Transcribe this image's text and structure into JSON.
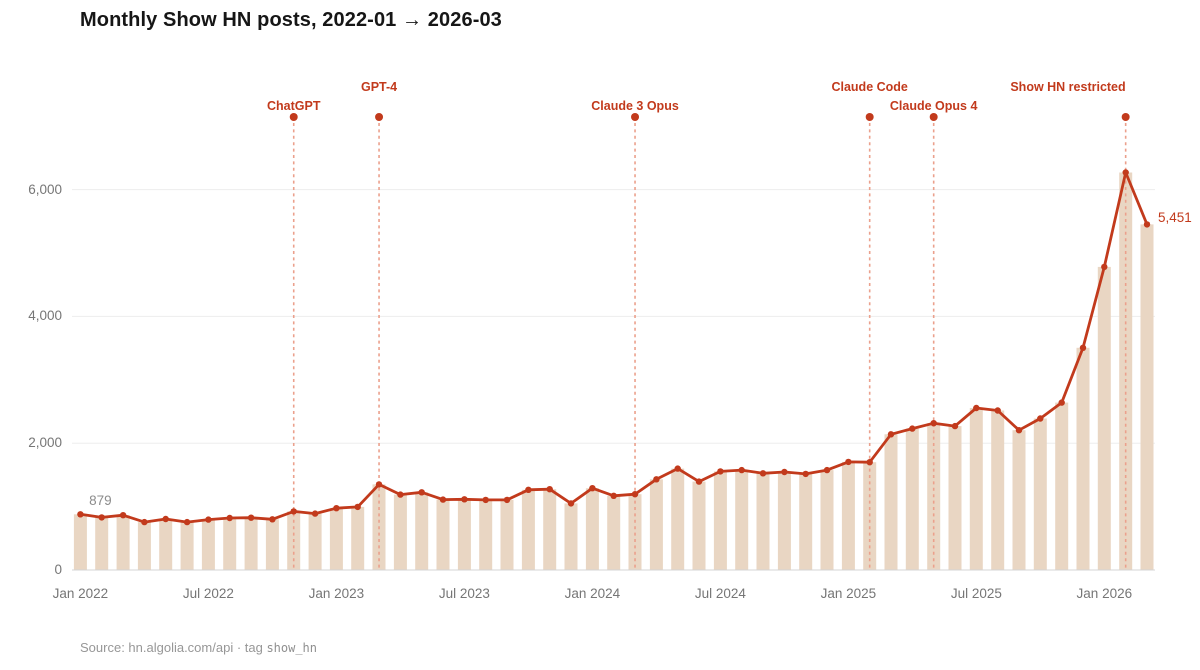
{
  "chart_data": {
    "type": "bar+line",
    "title": "Monthly Show HN posts, 2022-01 → 2026-03",
    "grid": true,
    "legend": "none",
    "y_axis": {
      "ticks": [
        {
          "value": 0,
          "label": "0"
        },
        {
          "value": 2000,
          "label": "2,000"
        },
        {
          "value": 4000,
          "label": "4,000"
        },
        {
          "value": 6000,
          "label": "6,000"
        }
      ],
      "range": [
        0,
        7000
      ]
    },
    "x_axis": {
      "ticks": [
        {
          "month": "2022-01",
          "label": "Jan 2022"
        },
        {
          "month": "2022-07",
          "label": "Jul 2022"
        },
        {
          "month": "2023-01",
          "label": "Jan 2023"
        },
        {
          "month": "2023-07",
          "label": "Jul 2023"
        },
        {
          "month": "2024-01",
          "label": "Jan 2024"
        },
        {
          "month": "2024-07",
          "label": "Jul 2024"
        },
        {
          "month": "2025-01",
          "label": "Jan 2025"
        },
        {
          "month": "2025-07",
          "label": "Jul 2025"
        },
        {
          "month": "2026-01",
          "label": "Jan 2026"
        }
      ]
    },
    "months": [
      "2022-01",
      "2022-02",
      "2022-03",
      "2022-04",
      "2022-05",
      "2022-06",
      "2022-07",
      "2022-08",
      "2022-09",
      "2022-10",
      "2022-11",
      "2022-12",
      "2023-01",
      "2023-02",
      "2023-03",
      "2023-04",
      "2023-05",
      "2023-06",
      "2023-07",
      "2023-08",
      "2023-09",
      "2023-10",
      "2023-11",
      "2023-12",
      "2024-01",
      "2024-02",
      "2024-03",
      "2024-04",
      "2024-05",
      "2024-06",
      "2024-07",
      "2024-08",
      "2024-09",
      "2024-10",
      "2024-11",
      "2024-12",
      "2025-01",
      "2025-02",
      "2025-03",
      "2025-04",
      "2025-05",
      "2025-06",
      "2025-07",
      "2025-08",
      "2025-09",
      "2025-10",
      "2025-11",
      "2025-12",
      "2026-01",
      "2026-02",
      "2026-03"
    ],
    "values": [
      879,
      830,
      865,
      755,
      805,
      755,
      795,
      820,
      825,
      800,
      925,
      890,
      975,
      995,
      1350,
      1190,
      1225,
      1110,
      1115,
      1105,
      1105,
      1265,
      1275,
      1050,
      1290,
      1170,
      1195,
      1430,
      1600,
      1395,
      1555,
      1575,
      1525,
      1545,
      1515,
      1575,
      1705,
      1700,
      2140,
      2230,
      2315,
      2270,
      2555,
      2515,
      2205,
      2390,
      2640,
      3505,
      4780,
      6270,
      5451
    ],
    "annotations": [
      {
        "label": "ChatGPT",
        "month": "2022-11",
        "row": 2,
        "align": "center"
      },
      {
        "label": "GPT-4",
        "month": "2023-03",
        "row": 1,
        "align": "center"
      },
      {
        "label": "Claude 3 Opus",
        "month": "2024-03",
        "row": 2,
        "align": "center"
      },
      {
        "label": "Claude Code",
        "month": "2025-02",
        "row": 1,
        "align": "center"
      },
      {
        "label": "Claude Opus 4",
        "month": "2025-05",
        "row": 2,
        "align": "center"
      },
      {
        "label": "Show HN restricted",
        "month": "2026-02",
        "row": 1,
        "align": "right"
      }
    ],
    "point_labels": [
      {
        "month": "2022-01",
        "text": "879",
        "style": "muted",
        "placement": "above"
      },
      {
        "month": "2026-03",
        "text": "5,451",
        "style": "accent",
        "placement": "right"
      }
    ],
    "colors": {
      "line": "#c23a1c",
      "marker": "#c23a1c",
      "bar": "#e9d6c3",
      "annotation_text": "#c23a1c",
      "annotation_dashed": "#eba08c",
      "grid": "#ededed",
      "baseline": "#d4d4d4",
      "axis_text": "#767676",
      "muted_label": "#8c8c8c"
    }
  },
  "footer": {
    "source_prefix": "Source: hn.algolia.com/api · tag ",
    "source_tag": "show_hn"
  }
}
